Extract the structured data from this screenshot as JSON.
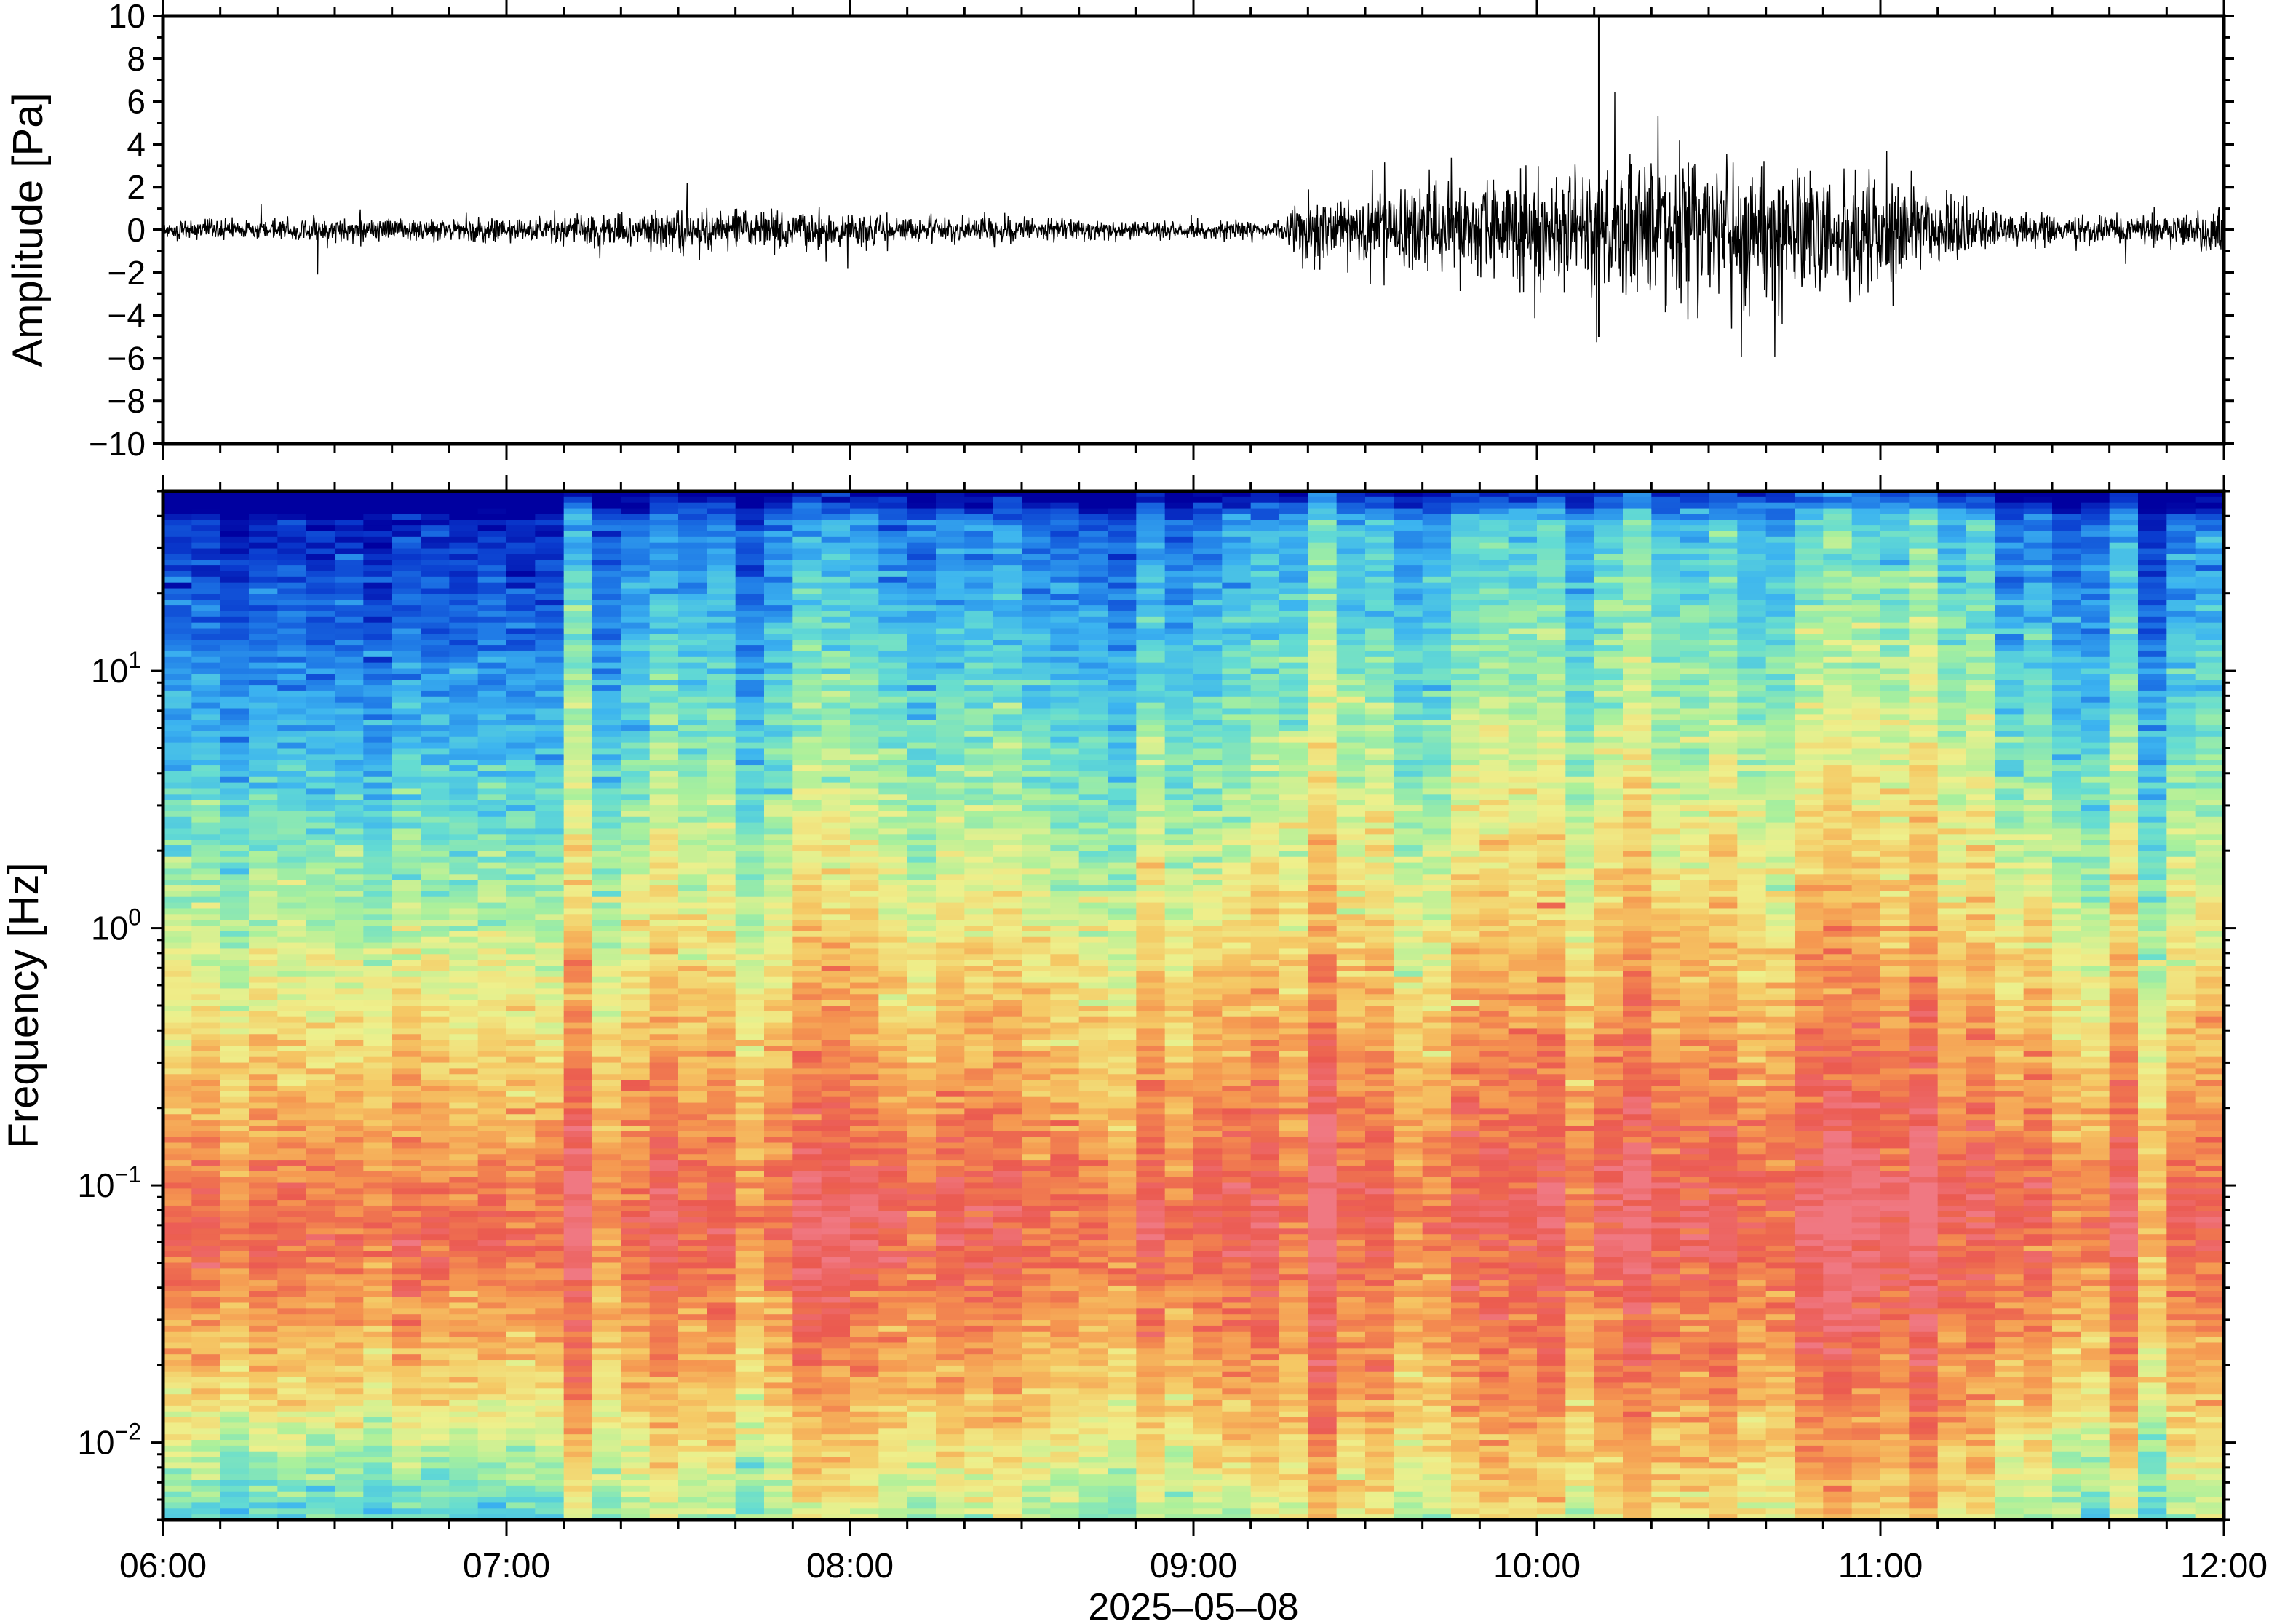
{
  "chart_data": [
    {
      "type": "line",
      "ylabel": "Amplitude [Pa]",
      "ylim": [
        -10,
        10
      ],
      "yticks": [
        10,
        8,
        6,
        4,
        2,
        0,
        -2,
        -4,
        -6,
        -8,
        -10
      ],
      "ytick_labels": [
        "10",
        "8",
        "6",
        "4",
        "2",
        "0",
        "−2",
        "−4",
        "−6",
        "−8",
        "−10"
      ],
      "xlim_hours": [
        6,
        12
      ],
      "grid": false,
      "envelope": {
        "description_of_values": "time (decimal hour) vs approximate peak amplitude [Pa]",
        "points": [
          {
            "t": 6.0,
            "amp": 0.5
          },
          {
            "t": 6.5,
            "amp": 0.6
          },
          {
            "t": 7.0,
            "amp": 0.6
          },
          {
            "t": 7.25,
            "amp": 0.9
          },
          {
            "t": 7.5,
            "amp": 1.1
          },
          {
            "t": 8.0,
            "amp": 0.9
          },
          {
            "t": 8.5,
            "amp": 0.6
          },
          {
            "t": 9.0,
            "amp": 0.5
          },
          {
            "t": 9.25,
            "amp": 0.5
          },
          {
            "t": 9.3,
            "amp": 1.6
          },
          {
            "t": 9.5,
            "amp": 2.0
          },
          {
            "t": 9.75,
            "amp": 2.4
          },
          {
            "t": 10.0,
            "amp": 3.0
          },
          {
            "t": 10.25,
            "amp": 4.0
          },
          {
            "t": 10.5,
            "amp": 4.2
          },
          {
            "t": 10.75,
            "amp": 3.8
          },
          {
            "t": 11.0,
            "amp": 3.0
          },
          {
            "t": 11.25,
            "amp": 1.6
          },
          {
            "t": 11.5,
            "amp": 0.8
          },
          {
            "t": 11.75,
            "amp": 0.7
          },
          {
            "t": 12.0,
            "amp": 1.3
          }
        ],
        "max_spike": {
          "t": 10.18,
          "amp": 10
        }
      }
    },
    {
      "type": "heatmap",
      "ylabel": "Frequency [Hz]",
      "xlabel": "2025–05–08",
      "yscale": "log",
      "ylim": [
        0.005,
        50
      ],
      "yticks": [
        {
          "value": 10,
          "base": "10",
          "exp": "1"
        },
        {
          "value": 1,
          "base": "10",
          "exp": "0"
        },
        {
          "value": 0.1,
          "base": "10",
          "exp": "−1"
        },
        {
          "value": 0.01,
          "base": "10",
          "exp": "−2"
        }
      ],
      "xticks": [
        "06:00",
        "07:00",
        "08:00",
        "09:00",
        "10:00",
        "11:00",
        "12:00"
      ],
      "xlim_hours": [
        6,
        12
      ],
      "colormap": [
        "#0000a0",
        "#0a3ccf",
        "#1e78e6",
        "#3cb4f0",
        "#64dcd2",
        "#aaf09b",
        "#eef08c",
        "#f5c864",
        "#f59650",
        "#eb5a50",
        "#f07882"
      ],
      "segments": [
        {
          "start": "06:00",
          "end": "07:10",
          "level": "low"
        },
        {
          "start": "07:10",
          "end": "09:17",
          "level": "moderate"
        },
        {
          "start": "09:17",
          "end": "11:20",
          "level": "high"
        },
        {
          "start": "11:20",
          "end": "12:00",
          "level": "moderate"
        }
      ]
    }
  ]
}
